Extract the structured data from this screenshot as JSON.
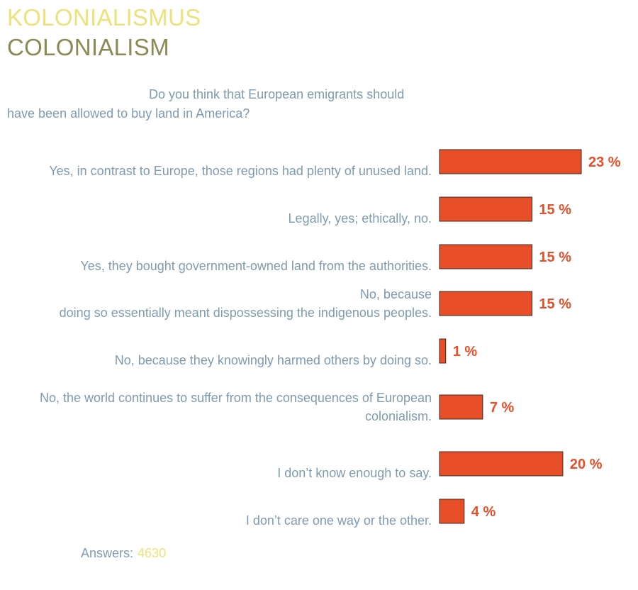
{
  "header": {
    "title_de": "KOLONIALISMUS",
    "title_en": "COLONIALISM"
  },
  "question": "Do you think that European emigrants should have been allowed to buy land in America?",
  "footer": {
    "answers_label": "Answers:",
    "answers_count": "4630"
  },
  "colors": {
    "bar": "#e84e27",
    "bar_stroke": "#3a2a20",
    "label_text": "#7f9bb0",
    "value_text": "#e84e27",
    "title_de": "#ece27a",
    "title_en": "#8a8a55"
  },
  "chart_data": {
    "type": "bar",
    "orientation": "horizontal",
    "unit": "%",
    "categories": [
      [
        "Yes, in contrast to Europe, those regions had plenty of unused land."
      ],
      [
        "Legally, yes; ethically, no."
      ],
      [
        "Yes, they bought government-owned land from the authorities."
      ],
      [
        "No, because",
        "doing so essentially meant dispossessing the indigenous peoples."
      ],
      [
        "No, because they knowingly harmed others by doing so."
      ],
      [
        "No, the world continues to suffer from the consequences of European",
        "colonialism."
      ],
      [
        "I don’t know enough to say."
      ],
      [
        "I don’t care one way or the other."
      ]
    ],
    "values": [
      23,
      15,
      15,
      15,
      1,
      7,
      20,
      4
    ],
    "value_labels": [
      "23 %",
      "15 %",
      "15 %",
      "15 %",
      "1 %",
      "7 %",
      "20 %",
      "4 %"
    ],
    "title": "",
    "xlabel": "",
    "ylabel": ""
  }
}
